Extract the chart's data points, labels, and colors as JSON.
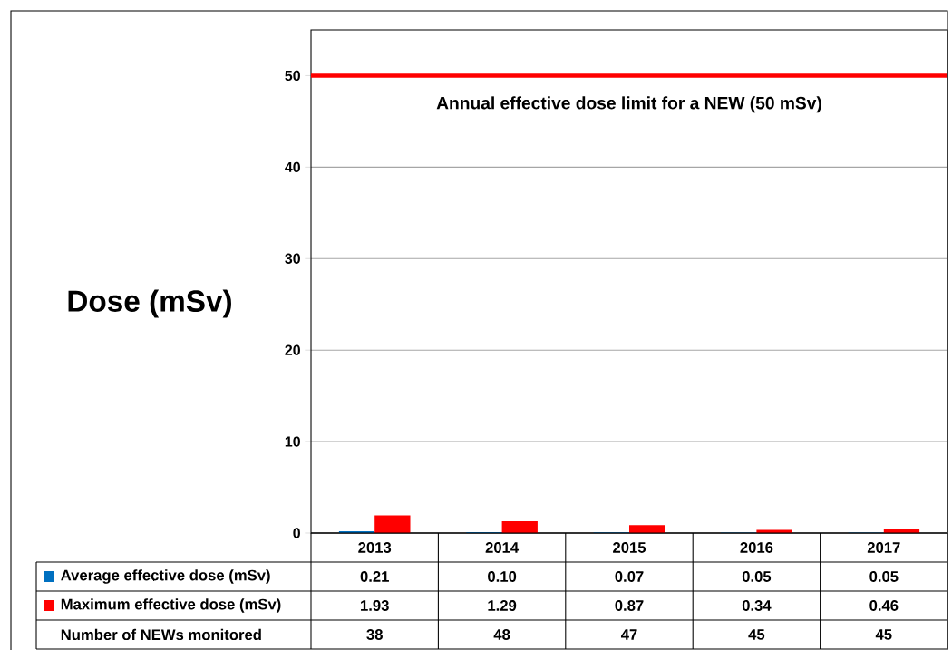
{
  "chart_data": {
    "type": "bar",
    "ylabel": "Dose (mSv)",
    "categories": [
      "2013",
      "2014",
      "2015",
      "2016",
      "2017"
    ],
    "series": [
      {
        "name": "Average effective dose (mSv)",
        "color": "#0070c0",
        "values": [
          0.21,
          0.1,
          0.07,
          0.05,
          0.05
        ],
        "value_labels": [
          "0.21",
          "0.10",
          "0.07",
          "0.05",
          "0.05"
        ]
      },
      {
        "name": "Maximum effective dose (mSv)",
        "color": "#ff0000",
        "values": [
          1.93,
          1.29,
          0.87,
          0.34,
          0.46
        ],
        "value_labels": [
          "1.93",
          "1.29",
          "0.87",
          "0.34",
          "0.46"
        ]
      }
    ],
    "ylim": [
      0,
      55
    ],
    "yticks": [
      0,
      10,
      20,
      30,
      40,
      50
    ],
    "grid": "y",
    "legend": "bottom",
    "ref_lines": [
      {
        "axis": "y",
        "value": 50,
        "label": "Annual effective dose limit for a NEW (50 mSv)",
        "color": "#ff0000"
      }
    ],
    "annotations": [
      "Number of NEWs monitored",
      "38",
      "48",
      "47",
      "45",
      "45"
    ]
  }
}
